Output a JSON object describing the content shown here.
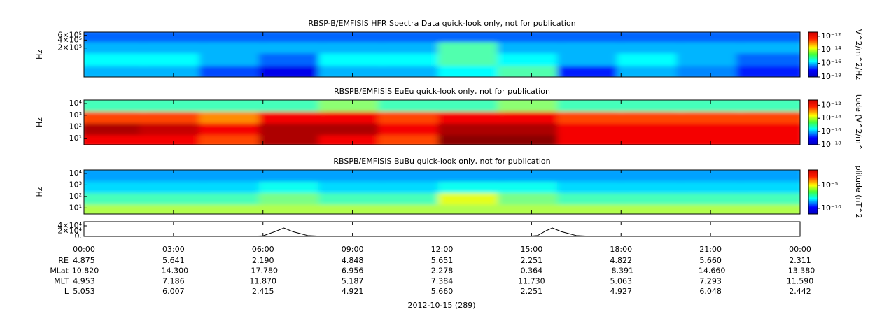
{
  "chart_data": [
    {
      "type": "heatmap",
      "title": "RBSP-B/EMFISIS  HFR Spectra Data quick-look only, not for publication",
      "ylabel": "Hz",
      "ylog": true,
      "ylim": [
        16000,
        800000
      ],
      "yticks": [
        {
          "value": 200000,
          "label": "2×10⁵"
        },
        {
          "value": 400000,
          "label": "4×10⁵"
        },
        {
          "value": 600000,
          "label": "6×10⁵"
        }
      ],
      "xlim": [
        0,
        24
      ],
      "x_edges": [
        0,
        2,
        4,
        6,
        8,
        10,
        12,
        14,
        16,
        18,
        20,
        22,
        24
      ],
      "y_edges": [
        16000,
        50000,
        150000,
        400000,
        800000
      ],
      "z": [
        [
          1e-16,
          1e-16,
          2e-17,
          5e-18,
          1e-16,
          1e-16,
          3e-16,
          1e-15,
          1e-17,
          1e-16,
          5e-17,
          1e-17
        ],
        [
          3e-16,
          3e-16,
          1e-16,
          3e-17,
          3e-16,
          3e-16,
          1e-15,
          3e-16,
          1e-16,
          3e-16,
          1e-16,
          3e-17
        ],
        [
          1e-16,
          1e-16,
          1e-16,
          1e-16,
          1e-16,
          1e-16,
          1e-15,
          1e-16,
          1e-16,
          1e-16,
          1e-16,
          1e-16
        ],
        [
          3e-17,
          3e-17,
          3e-17,
          3e-17,
          3e-17,
          3e-17,
          3e-17,
          3e-17,
          3e-17,
          3e-17,
          3e-17,
          3e-17
        ]
      ],
      "colorbar": {
        "label": "V^2/m^2/Hz",
        "clim": [
          1e-18,
          4e-12
        ],
        "ticks": [
          {
            "value": 1e-12,
            "label": "10⁻¹²"
          },
          {
            "value": 1e-14,
            "label": "10⁻¹⁴"
          },
          {
            "value": 1e-16,
            "label": "10⁻¹⁶"
          },
          {
            "value": 1e-18,
            "label": "10⁻¹⁸"
          }
        ]
      }
    },
    {
      "type": "heatmap",
      "title": "RBSPB/EMFISIS  EuEu quick-look only, not for publication",
      "ylabel": "Hz",
      "ylog": true,
      "ylim": [
        3,
        20000
      ],
      "yticks": [
        {
          "value": 10,
          "label": "10¹"
        },
        {
          "value": 100,
          "label": "10²"
        },
        {
          "value": 1000,
          "label": "10³"
        },
        {
          "value": 10000,
          "label": "10⁴"
        }
      ],
      "xlim": [
        0,
        24
      ],
      "x_edges": [
        0,
        2,
        4,
        6,
        8,
        10,
        12,
        14,
        16,
        18,
        20,
        22,
        24
      ],
      "y_edges": [
        3,
        30,
        300,
        3000,
        20000
      ],
      "z": [
        [
          1e-12,
          1e-12,
          3e-13,
          3e-12,
          1e-12,
          3e-13,
          5e-12,
          5e-12,
          1e-12,
          1e-12,
          1e-12,
          1e-12
        ],
        [
          3e-12,
          2e-12,
          1e-12,
          3e-12,
          3e-12,
          1e-12,
          3e-12,
          3e-12,
          1e-12,
          1e-12,
          1e-12,
          1e-12
        ],
        [
          3e-13,
          3e-13,
          1e-13,
          1e-12,
          1e-12,
          3e-13,
          1e-12,
          1e-12,
          3e-13,
          3e-13,
          3e-13,
          3e-13
        ],
        [
          1e-15,
          1e-15,
          1e-15,
          1e-15,
          3e-15,
          1e-15,
          1e-15,
          3e-15,
          1e-15,
          1e-15,
          1e-15,
          1e-15
        ]
      ],
      "colorbar": {
        "label": "tude (V^2/m^",
        "clim": [
          1e-18,
          6e-12
        ],
        "ticks": [
          {
            "value": 1e-12,
            "label": "10⁻¹²"
          },
          {
            "value": 1e-14,
            "label": "10⁻¹⁴"
          },
          {
            "value": 1e-16,
            "label": "10⁻¹⁶"
          },
          {
            "value": 1e-18,
            "label": "10⁻¹⁸"
          }
        ]
      }
    },
    {
      "type": "heatmap",
      "title": "RBSPB/EMFISIS  BuBu quick-look only, not for publication",
      "ylabel": "Hz",
      "ylog": true,
      "ylim": [
        3,
        20000
      ],
      "yticks": [
        {
          "value": 10,
          "label": "10¹"
        },
        {
          "value": 100,
          "label": "10²"
        },
        {
          "value": 1000,
          "label": "10³"
        },
        {
          "value": 10000,
          "label": "10⁴"
        }
      ],
      "xlim": [
        0,
        24
      ],
      "x_edges": [
        0,
        2,
        4,
        6,
        8,
        10,
        12,
        14,
        16,
        18,
        20,
        22,
        24
      ],
      "y_edges": [
        3,
        30,
        300,
        3000,
        20000
      ],
      "z": [
        [
          1e-06,
          1e-06,
          1e-06,
          1e-06,
          1e-06,
          1e-06,
          1e-06,
          1e-06,
          1e-06,
          1e-06,
          1e-06,
          1e-06
        ],
        [
          1e-07,
          1e-07,
          1e-07,
          3e-07,
          1e-07,
          1e-07,
          3e-06,
          3e-07,
          1e-07,
          1e-07,
          1e-07,
          1e-07
        ],
        [
          1e-08,
          1e-08,
          1e-08,
          3e-08,
          1e-08,
          1e-08,
          3e-08,
          3e-08,
          1e-08,
          1e-08,
          1e-08,
          1e-08
        ],
        [
          3e-09,
          3e-09,
          3e-09,
          3e-09,
          3e-09,
          3e-09,
          3e-09,
          3e-09,
          3e-09,
          3e-09,
          3e-09,
          3e-09
        ]
      ],
      "colorbar": {
        "label": "plitude (nT^2",
        "clim": [
          6e-12,
          0.02
        ],
        "ticks": [
          {
            "value": 1e-05,
            "label": "10⁻⁵"
          },
          {
            "value": 1e-10,
            "label": "10⁻¹⁰"
          }
        ]
      }
    },
    {
      "type": "line",
      "color": "#000000",
      "xlim": [
        0,
        24
      ],
      "ylim": [
        0,
        56000
      ],
      "yticks": [
        {
          "value": 0,
          "label": "0."
        },
        {
          "value": 20000,
          "label": "2×10⁴"
        },
        {
          "value": 40000,
          "label": "4×10⁴"
        }
      ],
      "xticks": [
        {
          "value": 0,
          "label": "00:00"
        },
        {
          "value": 3,
          "label": "03:00"
        },
        {
          "value": 6,
          "label": "06:00"
        },
        {
          "value": 9,
          "label": "09:00"
        },
        {
          "value": 12,
          "label": "12:00"
        },
        {
          "value": 15,
          "label": "15:00"
        },
        {
          "value": 18,
          "label": "18:00"
        },
        {
          "value": 21,
          "label": "21:00"
        },
        {
          "value": 24,
          "label": "00:00"
        }
      ],
      "x": [
        0,
        5.5,
        6,
        6.4,
        6.7,
        7,
        7.5,
        8,
        9,
        14.8,
        15.2,
        15.5,
        15.7,
        16,
        16.5,
        17,
        18,
        24
      ],
      "values": [
        0,
        0,
        2000,
        18000,
        32000,
        18000,
        3000,
        500,
        0,
        0,
        3000,
        22000,
        32000,
        18000,
        3000,
        500,
        0,
        0
      ]
    }
  ],
  "ephemeris": {
    "rows": [
      {
        "label": "RE",
        "values": [
          "4.875",
          "5.641",
          "2.190",
          "4.848",
          "5.651",
          "2.251",
          "4.822",
          "5.660",
          "2.311"
        ]
      },
      {
        "label": "MLat",
        "values": [
          "-10.820",
          "-14.300",
          "-17.780",
          "6.956",
          "2.278",
          "0.364",
          "-8.391",
          "-14.660",
          "-13.380"
        ]
      },
      {
        "label": "MLT",
        "values": [
          "4.953",
          "7.186",
          "11.870",
          "5.187",
          "7.384",
          "11.730",
          "5.063",
          "7.293",
          "11.590"
        ]
      },
      {
        "label": "L",
        "values": [
          "5.053",
          "6.007",
          "2.415",
          "4.921",
          "5.660",
          "2.251",
          "4.927",
          "6.048",
          "2.442"
        ]
      }
    ],
    "date": "2012-10-15 (289)"
  }
}
